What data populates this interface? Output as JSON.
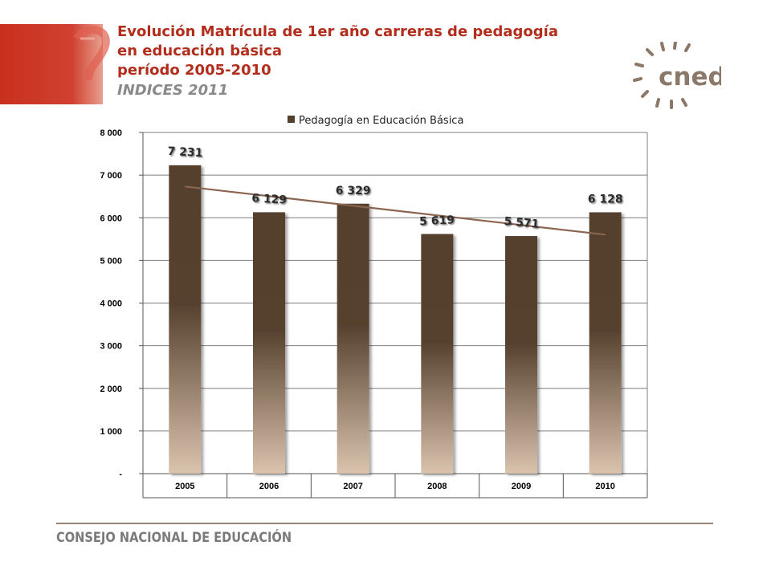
{
  "header": {
    "title_line1": "Evolución Matrícula de 1er año carreras de  pedagogía",
    "title_line2": "en educación básica",
    "period": "período 2005-2010",
    "source": "INDICES 2011"
  },
  "logo": {
    "text": "cned",
    "color": "#8a7868"
  },
  "footer": {
    "text": "CONSEJO NACIONAL DE EDUCACIÓN"
  },
  "colors": {
    "title": "#b22d1b",
    "bar_dark": "#54402f",
    "bar_light": "#d9c3ad",
    "trendline": "#8b6550",
    "accent_red": "#c0392b"
  },
  "chart_data": {
    "type": "bar",
    "categories": [
      "2005",
      "2006",
      "2007",
      "2008",
      "2009",
      "2010"
    ],
    "series": [
      {
        "name": "Pedagogía en Educación  Básica",
        "values": [
          7231,
          6129,
          6329,
          5619,
          5571,
          6128
        ]
      }
    ],
    "data_labels": [
      "7 231",
      "6 129",
      "6 329",
      "5 619",
      "5 571",
      "6 128"
    ],
    "ylim": [
      0,
      8000
    ],
    "y_ticks": [
      0,
      1000,
      2000,
      3000,
      4000,
      5000,
      6000,
      7000,
      8000
    ],
    "y_tick_labels": [
      "-",
      "1 000",
      "2 000",
      "3 000",
      "4 000",
      "5 000",
      "6 000",
      "7 000",
      "8 000"
    ],
    "grid": true,
    "legend_position": "top",
    "trendline": "linear"
  }
}
